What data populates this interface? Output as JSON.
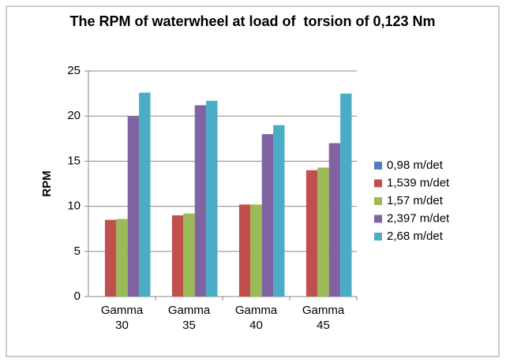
{
  "chart_data": {
    "type": "bar",
    "title": "The RPM of waterwheel at load of  torsion of 0,123 Nm",
    "ylabel": "RPM",
    "categories": [
      "Gamma 30",
      "Gamma 35",
      "Gamma 40",
      "Gamma 45"
    ],
    "series": [
      {
        "name": "0,98 m/det",
        "color": "#4f81bd",
        "values": [
          0,
          0,
          0,
          0
        ]
      },
      {
        "name": "1,539 m/det",
        "color": "#c0504d",
        "values": [
          8.5,
          9,
          10.2,
          14
        ]
      },
      {
        "name": "1,57 m/det",
        "color": "#9bbb59",
        "values": [
          8.6,
          9.2,
          10.2,
          14.3
        ]
      },
      {
        "name": "2,397 m/det",
        "color": "#8064a2",
        "values": [
          20,
          21.2,
          18,
          17
        ]
      },
      {
        "name": "2,68 m/det",
        "color": "#4bacc6",
        "values": [
          22.6,
          21.7,
          19,
          22.5
        ]
      }
    ],
    "ylim": [
      0,
      25
    ],
    "yticks": [
      0,
      5,
      10,
      15,
      20,
      25
    ],
    "grid": true,
    "legend": "right"
  }
}
